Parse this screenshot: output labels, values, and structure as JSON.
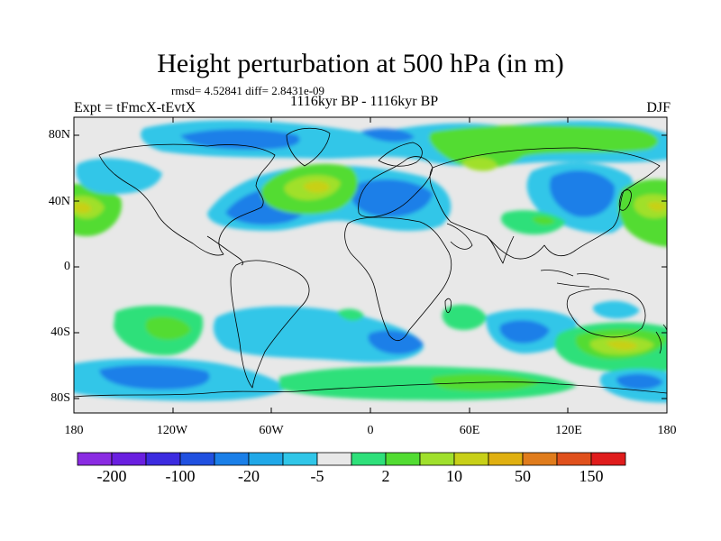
{
  "title": "Height perturbation at 500 hPa (in m)",
  "stats": "rmsd= 4.52841 diff= 2.8431e-09",
  "experiment": "Expt = tFmcX-tEvtX",
  "period": "1116kyr BP - 1116kyr BP",
  "season": "DJF",
  "y_ticks": [
    "80N",
    "40N",
    "0",
    "40S",
    "80S"
  ],
  "x_ticks": [
    "180",
    "120W",
    "60W",
    "0",
    "60E",
    "120E",
    "180"
  ],
  "colorbar": {
    "labels": [
      "-200",
      "-100",
      "-20",
      "-5",
      "2",
      "10",
      "50",
      "150"
    ],
    "colors": [
      "#8a2be2",
      "#6a1fe0",
      "#3c2be0",
      "#2050e0",
      "#1a7fe8",
      "#20a8e8",
      "#30c6e8",
      "#e8e8e8",
      "#2ee07a",
      "#52dc32",
      "#a0e02c",
      "#c8d018",
      "#e0b010",
      "#e07c1c",
      "#e0501c",
      "#e01c1c"
    ]
  },
  "colors": {
    "background": "#e8e8e8",
    "coast": "#000000"
  }
}
